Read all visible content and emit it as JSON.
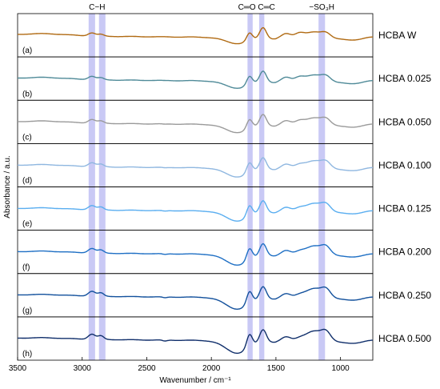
{
  "chart_data": {
    "type": "line",
    "title": "",
    "xlabel": "Wavenumber / cm⁻¹",
    "ylabel": "Absorbance / a.u.",
    "xlim": [
      3500,
      750
    ],
    "x_reversed": true,
    "x_ticks": [
      3500,
      3000,
      2500,
      2000,
      1500,
      1000
    ],
    "x_tick_labels": [
      "3500",
      "3000",
      "2500",
      "2000",
      "1500",
      "1000"
    ],
    "highlight_bands": [
      {
        "range": [
          2950,
          2900
        ],
        "label": "C−H"
      },
      {
        "range": [
          2870,
          2820
        ],
        "label": ""
      },
      {
        "range": [
          1720,
          1680
        ],
        "label": "C═O"
      },
      {
        "range": [
          1630,
          1590
        ],
        "label": "C═C"
      },
      {
        "range": [
          1170,
          1120
        ],
        "label": "−SO₃H"
      }
    ],
    "band_color": "#c9c9f5",
    "series": [
      {
        "name": "HCBA W",
        "panel": "(a)",
        "color": "#b06a12",
        "baseline": 0.25
      },
      {
        "name": "HCBA 0.025",
        "panel": "(b)",
        "color": "#4f8a98",
        "baseline": 0.35
      },
      {
        "name": "HCBA 0.050",
        "panel": "(c)",
        "color": "#9a9a9a",
        "baseline": 0.4
      },
      {
        "name": "HCBA 0.100",
        "panel": "(d)",
        "color": "#8fb7e0",
        "baseline": 0.45
      },
      {
        "name": "HCBA 0.125",
        "panel": "(e)",
        "color": "#5aaef0",
        "baseline": 0.4
      },
      {
        "name": "HCBA 0.200",
        "panel": "(f)",
        "color": "#1e6fc4",
        "baseline": 0.35
      },
      {
        "name": "HCBA 0.250",
        "panel": "(g)",
        "color": "#12509c",
        "baseline": 0.3
      },
      {
        "name": "HCBA 0.500",
        "panel": "(h)",
        "color": "#102f6b",
        "baseline": 0.25
      }
    ],
    "grid": false,
    "legend": "right"
  }
}
